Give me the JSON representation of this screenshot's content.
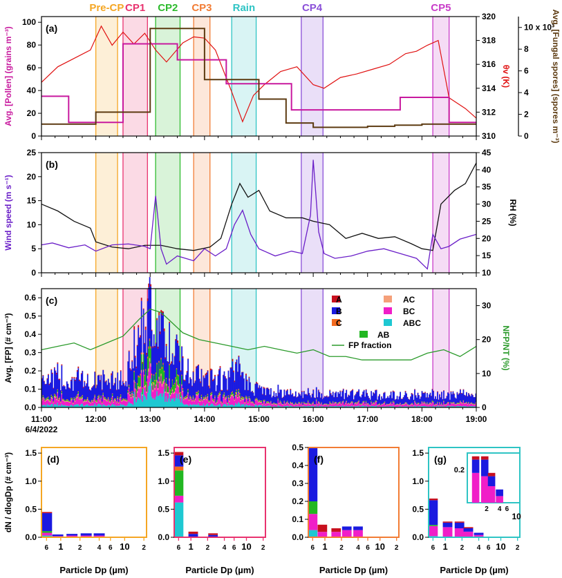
{
  "figure": {
    "event_labels": [
      "Pre-CP",
      "CP1",
      "CP2",
      "CP3",
      "Rain",
      "CP4",
      "CP5"
    ],
    "event_colors": [
      "#f5a623",
      "#e8326e",
      "#2dbb2d",
      "#f27c34",
      "#2ec4c4",
      "#8a4fd8",
      "#c83cc8"
    ],
    "x_tick_labels": [
      "11:00",
      "12:00",
      "13:00",
      "14:00",
      "15:00",
      "16:00",
      "17:00",
      "18:00",
      "19:00"
    ],
    "date_label": "6/4/2022"
  },
  "chart_data": [
    {
      "id": "a",
      "type": "line",
      "panel_label": "(a)",
      "ylabel_left": "Avg. [Pollen] (grains m⁻³)",
      "ylabel_right": "θv (K)",
      "ylabel_right2": "Avg. [Fungal spores] (spores m⁻³)",
      "ylim_left": [
        0,
        105
      ],
      "ylim_right": [
        310,
        320
      ],
      "ylim_right2": [
        0,
        11000
      ],
      "yticks_left": [
        "0",
        "20",
        "40",
        "60",
        "80",
        "100"
      ],
      "yticks_right": [
        "310",
        "312",
        "314",
        "316",
        "318",
        "320"
      ],
      "yticks_right2": [
        "0",
        "2",
        "4",
        "6",
        "8",
        "10 x 10³"
      ],
      "series": [
        {
          "name": "Pollen",
          "color": "#c8189e",
          "step_x": [
            11.0,
            11.5,
            12.5,
            13.5,
            14.4,
            15.6,
            17.6,
            18.5,
            19.0
          ],
          "step_y": [
            35,
            12,
            81,
            67,
            46,
            23,
            34,
            12,
            12
          ]
        },
        {
          "name": "Fungal spores",
          "color": "#5c3a10",
          "step_x": [
            11.0,
            11.5,
            12.0,
            12.5,
            13.0,
            14.0,
            15.0,
            15.5,
            16.0,
            16.5,
            17.0,
            17.5,
            18.0,
            18.5,
            19.0
          ],
          "step_y": [
            1100,
            1100,
            2200,
            2200,
            9900,
            5200,
            3400,
            1200,
            800,
            800,
            900,
            1000,
            1100,
            1100,
            1100
          ]
        },
        {
          "name": "θv",
          "color": "#e01010",
          "x": [
            11.0,
            11.3,
            11.6,
            11.9,
            12.1,
            12.3,
            12.5,
            12.7,
            12.9,
            13.1,
            13.3,
            13.6,
            13.8,
            14.0,
            14.2,
            14.5,
            14.7,
            14.9,
            15.1,
            15.4,
            15.7,
            16.0,
            16.2,
            16.5,
            16.8,
            17.1,
            17.4,
            17.7,
            17.9,
            18.1,
            18.3,
            18.5,
            18.8,
            19.0
          ],
          "y": [
            314.5,
            315.8,
            316.5,
            317.2,
            319.2,
            317.6,
            318.7,
            317.7,
            318.6,
            317.2,
            316.2,
            317.8,
            318.3,
            318.2,
            317.2,
            313.7,
            311.2,
            313.4,
            314.3,
            315.4,
            315.8,
            314.3,
            314.0,
            314.9,
            315.2,
            315.6,
            316.0,
            316.9,
            317.1,
            317.6,
            318.0,
            313.2,
            312.3,
            311.5
          ]
        }
      ]
    },
    {
      "id": "b",
      "type": "line",
      "panel_label": "(b)",
      "ylabel_left": "Wind speed (m s⁻¹)",
      "ylabel_right": "RH (%)",
      "ylim_left": [
        0,
        25
      ],
      "ylim_right": [
        10,
        45
      ],
      "yticks_left": [
        "0",
        "5",
        "10",
        "15",
        "20",
        "25"
      ],
      "yticks_right": [
        "10",
        "15",
        "20",
        "25",
        "30",
        "35",
        "40",
        "45"
      ],
      "series": [
        {
          "name": "Wind speed",
          "color": "#6a1ec8",
          "x": [
            11.0,
            11.2,
            11.5,
            11.8,
            12.0,
            12.3,
            12.6,
            12.9,
            13.0,
            13.1,
            13.2,
            13.3,
            13.5,
            13.8,
            14.0,
            14.2,
            14.4,
            14.55,
            14.7,
            14.85,
            15.0,
            15.3,
            15.6,
            15.8,
            15.95,
            16.0,
            16.1,
            16.2,
            16.4,
            16.7,
            17.0,
            17.3,
            17.6,
            17.9,
            18.1,
            18.2,
            18.35,
            18.5,
            18.7,
            19.0
          ],
          "y": [
            5.8,
            6.2,
            5.2,
            5.8,
            4.5,
            5.8,
            6.0,
            5.5,
            5.0,
            16.0,
            5.0,
            1.8,
            3.5,
            2.5,
            5.0,
            3.5,
            5.0,
            10.0,
            13.0,
            8.0,
            5.0,
            3.5,
            4.5,
            4.0,
            12.0,
            23.5,
            8.5,
            4.0,
            3.0,
            3.5,
            4.5,
            5.0,
            4.0,
            3.0,
            0.8,
            8.0,
            5.0,
            5.5,
            7.0,
            8.0
          ]
        },
        {
          "name": "RH",
          "color": "#111111",
          "x": [
            11.0,
            11.3,
            11.6,
            11.9,
            12.0,
            12.3,
            12.6,
            12.9,
            13.2,
            13.5,
            13.8,
            14.1,
            14.3,
            14.5,
            14.65,
            14.8,
            15.0,
            15.2,
            15.5,
            15.8,
            16.0,
            16.3,
            16.6,
            16.9,
            17.2,
            17.5,
            17.8,
            18.0,
            18.2,
            18.35,
            18.6,
            18.8,
            19.0
          ],
          "y": [
            30.0,
            28.0,
            25.0,
            23.0,
            19.0,
            17.5,
            17.0,
            18.0,
            18.0,
            17.0,
            16.5,
            17.5,
            20.0,
            30.0,
            36.0,
            32.0,
            34.0,
            28.0,
            26.0,
            26.0,
            25.0,
            24.0,
            20.0,
            21.5,
            20.0,
            20.5,
            18.5,
            17.0,
            16.5,
            30.0,
            34.0,
            36.0,
            42.0
          ]
        }
      ]
    },
    {
      "id": "c",
      "type": "bar",
      "panel_label": "(c)",
      "ylabel_left": "Avg. [FP] (# cm⁻³)",
      "ylabel_right": "NFP/NT (%)",
      "ylim_left": [
        0,
        0.65
      ],
      "ylim_right": [
        0,
        35
      ],
      "yticks_left": [
        "0.0",
        "0.1",
        "0.2",
        "0.3",
        "0.4",
        "0.5",
        "0.6"
      ],
      "yticks_right": [
        "0",
        "10",
        "20",
        "30"
      ],
      "legend": [
        "A",
        "B",
        "C",
        "AB",
        "AC",
        "BC",
        "ABC",
        "FP fraction"
      ],
      "series_colors": {
        "A": "#c8101e",
        "B": "#1a1ae0",
        "C": "#f26a1e",
        "AB": "#22b722",
        "AC": "#f5a07a",
        "BC": "#f01ec8",
        "ABC": "#1ec8d2",
        "FP fraction": "#2a9a2a"
      },
      "total_profile_x": [
        11.0,
        11.5,
        12.0,
        12.5,
        12.8,
        13.0,
        13.1,
        13.3,
        13.6,
        14.0,
        14.4,
        14.6,
        14.8,
        15.2,
        15.8,
        16.2,
        17.0,
        18.0,
        18.5,
        19.0
      ],
      "total_profile_y": [
        0.2,
        0.18,
        0.17,
        0.18,
        0.36,
        0.5,
        0.45,
        0.33,
        0.24,
        0.18,
        0.17,
        0.26,
        0.14,
        0.1,
        0.09,
        0.09,
        0.08,
        0.08,
        0.08,
        0.08
      ],
      "fp_fraction_x": [
        11.0,
        11.3,
        11.6,
        11.9,
        12.2,
        12.5,
        12.8,
        13.0,
        13.2,
        13.4,
        13.6,
        13.9,
        14.2,
        14.5,
        14.8,
        15.1,
        15.4,
        15.7,
        16.0,
        16.3,
        16.6,
        16.9,
        17.2,
        17.5,
        17.8,
        18.1,
        18.4,
        18.7,
        19.0
      ],
      "fp_fraction_y": [
        17,
        18,
        19,
        17,
        19,
        21,
        26,
        29,
        28,
        25,
        22,
        20,
        19,
        18,
        17,
        18,
        17,
        16,
        17,
        15,
        15,
        14,
        14,
        14,
        14,
        16,
        17,
        15,
        18
      ]
    },
    {
      "id": "d",
      "type": "bar",
      "panel_label": "(d)",
      "ylabel": "dN / dlogDp (# cm⁻³)",
      "xlabel": "Particle Dp (µm)",
      "ylim": [
        0,
        1.6
      ],
      "yticks": [
        "0.0",
        "0.5",
        "1.0",
        "1.5"
      ],
      "xtick_labels": [
        "6",
        "1",
        "2",
        "4",
        "6",
        "10",
        "2"
      ],
      "bins": [
        {
          "x": 0.6,
          "total": 0.45,
          "stack": {
            "ABC": 0.03,
            "BC": 0.05,
            "AB": 0.03,
            "B": 0.32,
            "A": 0.02
          }
        },
        {
          "x": 0.9,
          "total": 0.05,
          "stack": {
            "BC": 0.02,
            "B": 0.03
          }
        },
        {
          "x": 1.5,
          "total": 0.06,
          "stack": {
            "BC": 0.03,
            "B": 0.03
          }
        },
        {
          "x": 2.5,
          "total": 0.07,
          "stack": {
            "BC": 0.03,
            "B": 0.04
          }
        },
        {
          "x": 4.0,
          "total": 0.07,
          "stack": {
            "BC": 0.03,
            "B": 0.04
          }
        }
      ]
    },
    {
      "id": "e",
      "type": "bar",
      "panel_label": "(e)",
      "xlabel": "Particle Dp (µm)",
      "ylim": [
        0,
        1.6
      ],
      "yticks": [
        "0.0",
        "0.5",
        "1.0",
        "1.5"
      ],
      "xtick_labels": [
        "6",
        "1",
        "2",
        "4",
        "6",
        "10",
        "2"
      ],
      "bins": [
        {
          "x": 0.6,
          "total": 1.52,
          "stack": {
            "ABC": 0.62,
            "BC": 0.12,
            "AB": 0.45,
            "B": 0.2,
            "C": 0.07,
            "A": 0.06
          }
        },
        {
          "x": 1.1,
          "total": 0.1,
          "stack": {
            "B": 0.06,
            "A": 0.04
          }
        },
        {
          "x": 2.5,
          "total": 0.07,
          "stack": {
            "B": 0.04,
            "A": 0.03
          }
        }
      ]
    },
    {
      "id": "f",
      "type": "bar",
      "panel_label": "(f)",
      "xlabel": "Particle Dp (µm)",
      "ylim": [
        0,
        0.5
      ],
      "yticks": [
        "0.0",
        "0.1",
        "0.2",
        "0.3",
        "0.4",
        "0.5"
      ],
      "xtick_labels": [
        "6",
        "1",
        "2",
        "4",
        "6",
        "10",
        "2"
      ],
      "bins": [
        {
          "x": 0.6,
          "total": 0.5,
          "stack": {
            "ABC": 0.04,
            "BC": 0.09,
            "AB": 0.07,
            "B": 0.3
          }
        },
        {
          "x": 0.9,
          "total": 0.07,
          "stack": {
            "BC": 0.03,
            "A": 0.04
          }
        },
        {
          "x": 1.6,
          "total": 0.05,
          "stack": {
            "BC": 0.03,
            "A": 0.02
          }
        },
        {
          "x": 2.5,
          "total": 0.06,
          "stack": {
            "BC": 0.04,
            "B": 0.02
          }
        },
        {
          "x": 4.0,
          "total": 0.06,
          "stack": {
            "BC": 0.04,
            "B": 0.02
          }
        }
      ]
    },
    {
      "id": "g",
      "type": "bar",
      "panel_label": "(g)",
      "xlabel": "Particle Dp (µm)",
      "ylim": [
        0,
        1.6
      ],
      "yticks": [
        "0.0",
        "0.5",
        "1.0",
        "1.5"
      ],
      "xtick_labels": [
        "6",
        "1",
        "2",
        "4",
        "6",
        "10",
        "2"
      ],
      "inset_yticks": [
        "0.2"
      ],
      "inset_xtick_labels": [
        "2",
        "4",
        "6",
        "10"
      ],
      "bins": [
        {
          "x": 0.6,
          "total": 0.69,
          "stack": {
            "ABC": 0.02,
            "BC": 0.18,
            "AB": 0.02,
            "B": 0.44,
            "A": 0.03
          }
        },
        {
          "x": 1.1,
          "total": 0.28,
          "stack": {
            "BC": 0.18,
            "B": 0.08,
            "A": 0.02
          }
        },
        {
          "x": 1.8,
          "total": 0.28,
          "stack": {
            "BC": 0.16,
            "B": 0.1,
            "A": 0.02
          }
        },
        {
          "x": 2.6,
          "total": 0.18,
          "stack": {
            "BC": 0.1,
            "B": 0.06,
            "A": 0.02
          }
        },
        {
          "x": 4.0,
          "total": 0.08,
          "stack": {
            "BC": 0.04,
            "B": 0.04
          }
        }
      ]
    }
  ]
}
